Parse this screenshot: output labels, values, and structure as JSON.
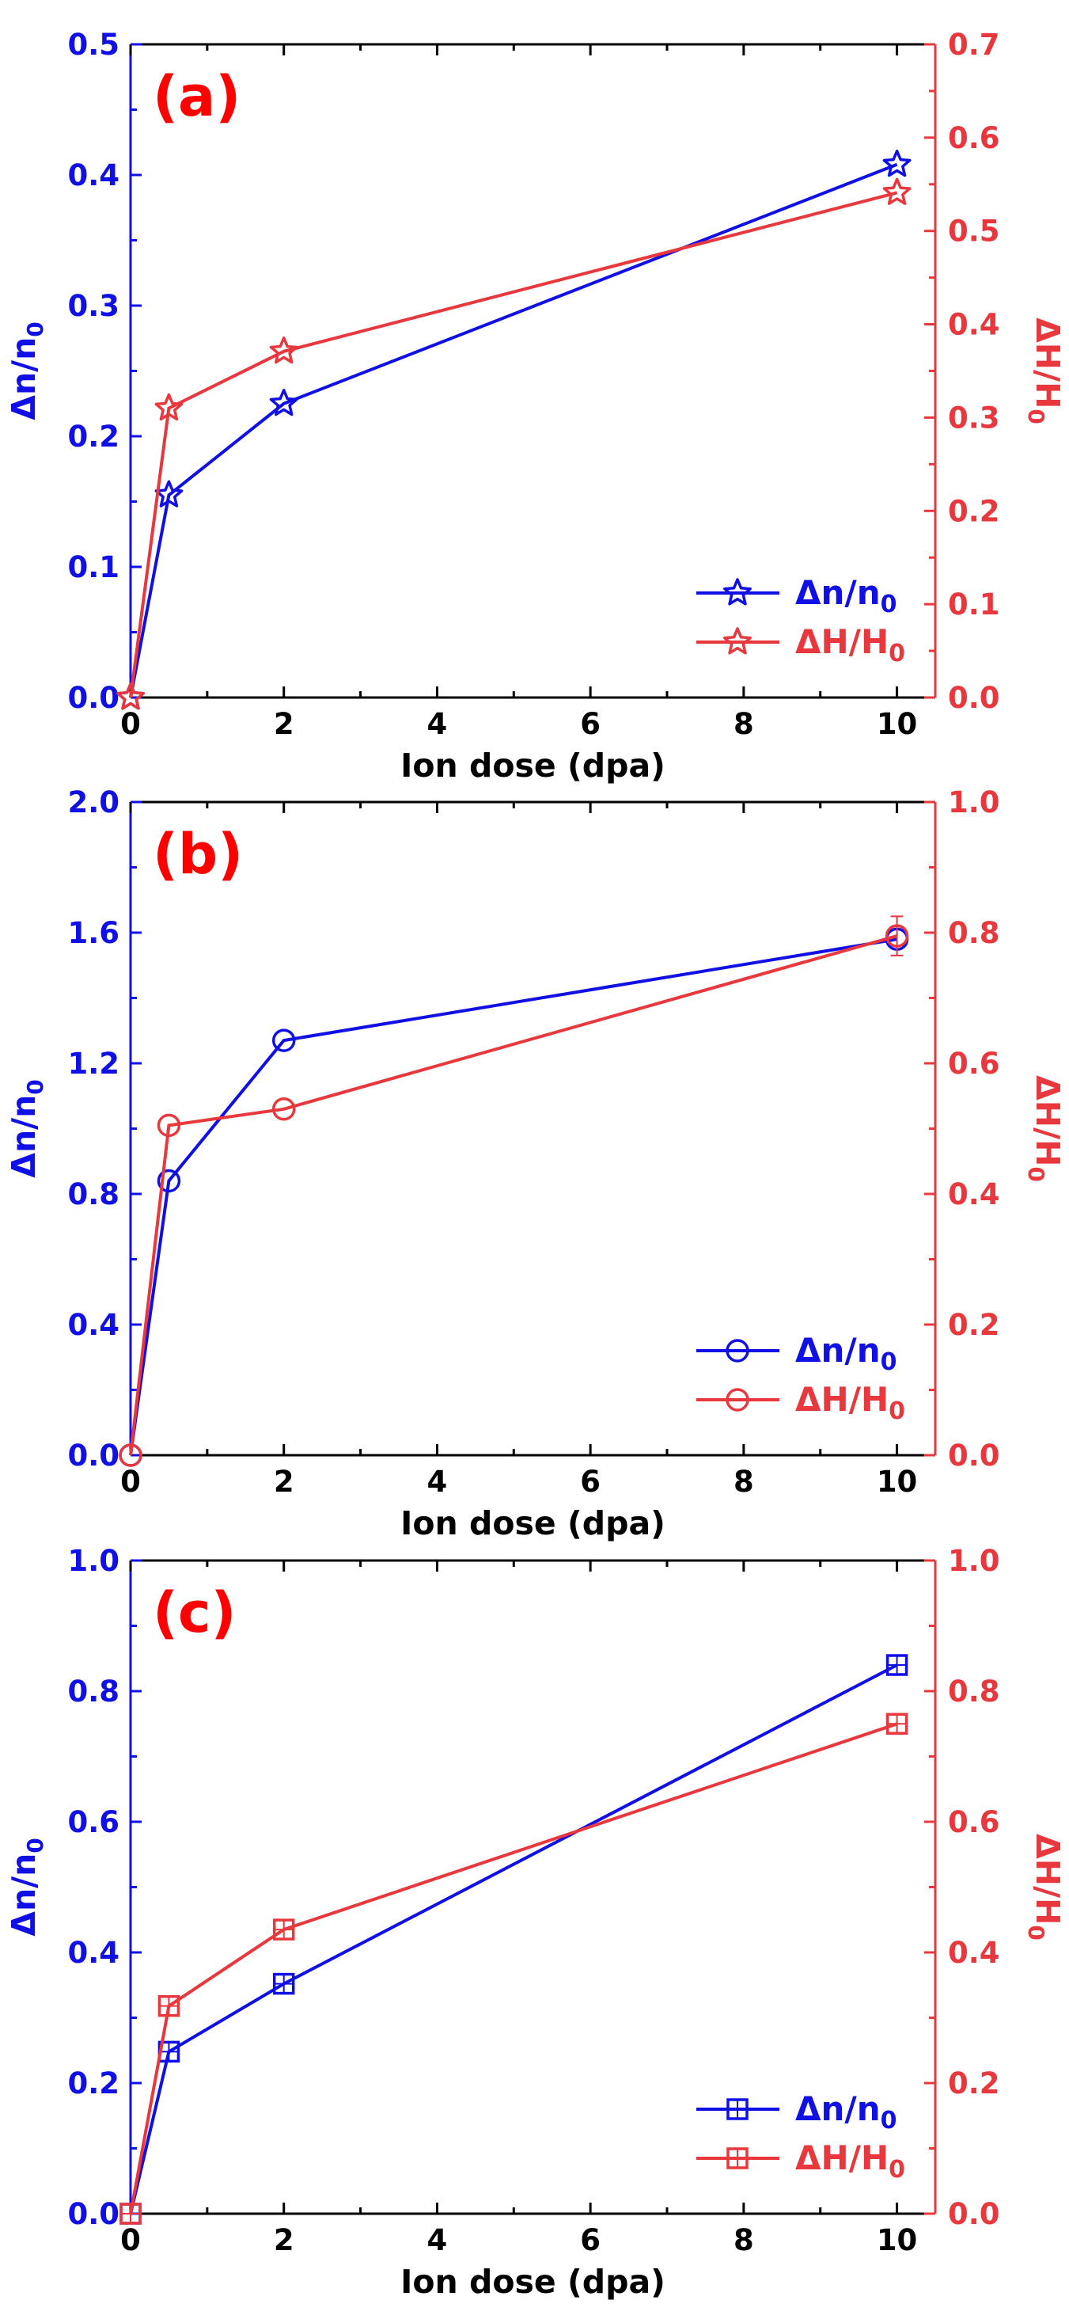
{
  "colors": {
    "blue": "#1010e6",
    "red": "#e8383d",
    "label_red": "#ff0000"
  },
  "chart_data": [
    {
      "type": "line",
      "panel_label": "(a)",
      "xlabel": "Ion dose (dpa)",
      "xlim": [
        0,
        10.5
      ],
      "xticks": [
        0,
        2,
        4,
        6,
        8,
        10
      ],
      "ylabel_left": "Δn/n0",
      "ylim_left": [
        0,
        0.5
      ],
      "yticks_left": [
        0.0,
        0.1,
        0.2,
        0.3,
        0.4,
        0.5
      ],
      "ylabel_right": "ΔH/H0",
      "ylim_right": [
        0,
        0.7
      ],
      "yticks_right": [
        0.0,
        0.1,
        0.2,
        0.3,
        0.4,
        0.5,
        0.6,
        0.7
      ],
      "marker": "star",
      "x": [
        0,
        0.5,
        2,
        10
      ],
      "series": [
        {
          "name": "Δn/n0",
          "axis": "left",
          "color": "#1010e6",
          "values": [
            0,
            0.155,
            0.225,
            0.408
          ]
        },
        {
          "name": "ΔH/H0",
          "axis": "right",
          "color": "#e8383d",
          "values": [
            0,
            0.31,
            0.371,
            0.541
          ]
        }
      ]
    },
    {
      "type": "line",
      "panel_label": "(b)",
      "xlabel": "Ion dose (dpa)",
      "xlim": [
        0,
        10.5
      ],
      "xticks": [
        0,
        2,
        4,
        6,
        8,
        10
      ],
      "ylabel_left": "Δn/n0",
      "ylim_left": [
        0,
        2.0
      ],
      "yticks_left": [
        0.0,
        0.4,
        0.8,
        1.2,
        1.6,
        2.0
      ],
      "ylabel_right": "ΔH/H0",
      "ylim_right": [
        0,
        1.0
      ],
      "yticks_right": [
        0.0,
        0.2,
        0.4,
        0.6,
        0.8,
        1.0
      ],
      "marker": "circle",
      "x": [
        0,
        0.5,
        2,
        10
      ],
      "series": [
        {
          "name": "Δn/n0",
          "axis": "left",
          "color": "#1010e6",
          "values": [
            0,
            0.84,
            1.27,
            1.58
          ]
        },
        {
          "name": "ΔH/H0",
          "axis": "right",
          "color": "#e8383d",
          "values": [
            0,
            0.505,
            0.53,
            0.795
          ],
          "errors": [
            0,
            0,
            0,
            0.03
          ]
        }
      ]
    },
    {
      "type": "line",
      "panel_label": "(c)",
      "xlabel": "Ion dose (dpa)",
      "xlim": [
        0,
        10.5
      ],
      "xticks": [
        0,
        2,
        4,
        6,
        8,
        10
      ],
      "ylabel_left": "Δn/n0",
      "ylim_left": [
        0,
        1.0
      ],
      "yticks_left": [
        0.0,
        0.2,
        0.4,
        0.6,
        0.8,
        1.0
      ],
      "ylabel_right": "ΔH/H0",
      "ylim_right": [
        0,
        1.0
      ],
      "yticks_right": [
        0.0,
        0.2,
        0.4,
        0.6,
        0.8,
        1.0
      ],
      "marker": "square",
      "x": [
        0,
        0.5,
        2,
        10
      ],
      "series": [
        {
          "name": "Δn/n0",
          "axis": "left",
          "color": "#1010e6",
          "values": [
            0,
            0.248,
            0.352,
            0.84
          ]
        },
        {
          "name": "ΔH/H0",
          "axis": "right",
          "color": "#e8383d",
          "values": [
            0,
            0.318,
            0.435,
            0.75
          ]
        }
      ]
    }
  ]
}
